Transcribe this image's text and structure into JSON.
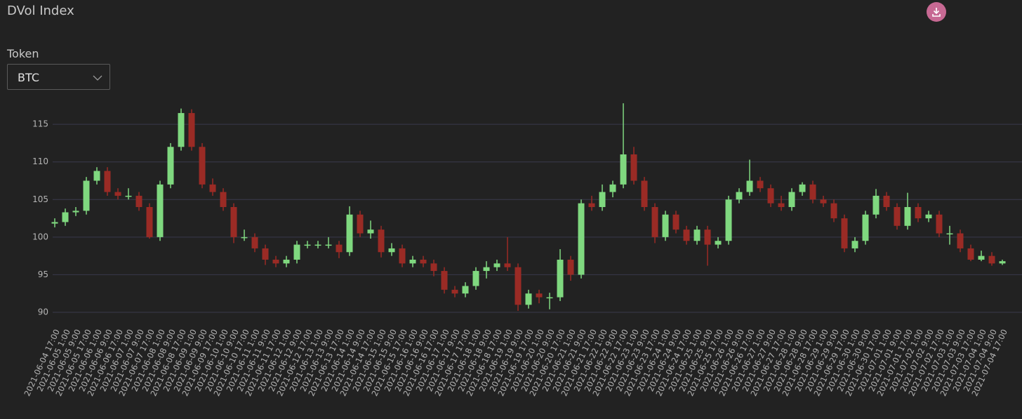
{
  "header": {
    "title": "DVol Index"
  },
  "controls": {
    "token_label": "Token",
    "token_value": "BTC"
  },
  "chart_data": {
    "type": "candlestick",
    "categories": [
      "2021-06-04 17:00",
      "2021-06-05 1:00",
      "2021-06-05 9:00",
      "2021-06-05 17:00",
      "2021-06-06 1:00",
      "2021-06-06 9:00",
      "2021-06-06 17:00",
      "2021-06-07 1:00",
      "2021-06-07 9:00",
      "2021-06-07 17:00",
      "2021-06-08 1:00",
      "2021-06-08 9:00",
      "2021-06-08 17:00",
      "2021-06-09 1:00",
      "2021-06-09 9:00",
      "2021-06-09 17:00",
      "2021-06-10 1:00",
      "2021-06-10 9:00",
      "2021-06-10 17:00",
      "2021-06-11 1:00",
      "2021-06-11 9:00",
      "2021-06-11 17:00",
      "2021-06-12 1:00",
      "2021-06-12 9:00",
      "2021-06-12 17:00",
      "2021-06-13 1:00",
      "2021-06-13 9:00",
      "2021-06-13 17:00",
      "2021-06-14 1:00",
      "2021-06-14 9:00",
      "2021-06-14 17:00",
      "2021-06-15 1:00",
      "2021-06-15 9:00",
      "2021-06-15 17:00",
      "2021-06-16 1:00",
      "2021-06-16 9:00",
      "2021-06-16 17:00",
      "2021-06-17 1:00",
      "2021-06-17 9:00",
      "2021-06-17 17:00",
      "2021-06-18 1:00",
      "2021-06-18 9:00",
      "2021-06-18 17:00",
      "2021-06-19 1:00",
      "2021-06-19 9:00",
      "2021-06-19 17:00",
      "2021-06-20 1:00",
      "2021-06-20 9:00",
      "2021-06-20 17:00",
      "2021-06-21 1:00",
      "2021-06-21 9:00",
      "2021-06-21 17:00",
      "2021-06-22 1:00",
      "2021-06-22 9:00",
      "2021-06-22 17:00",
      "2021-06-23 1:00",
      "2021-06-23 9:00",
      "2021-06-23 17:00",
      "2021-06-24 1:00",
      "2021-06-24 9:00",
      "2021-06-24 17:00",
      "2021-06-25 1:00",
      "2021-06-25 9:00",
      "2021-06-25 17:00",
      "2021-06-26 1:00",
      "2021-06-26 9:00",
      "2021-06-26 17:00",
      "2021-06-27 1:00",
      "2021-06-27 9:00",
      "2021-06-27 17:00",
      "2021-06-28 1:00",
      "2021-06-28 9:00",
      "2021-06-28 17:00",
      "2021-06-29 1:00",
      "2021-06-29 9:00",
      "2021-06-29 17:00",
      "2021-06-30 1:00",
      "2021-06-30 9:00",
      "2021-06-30 17:00",
      "2021-07-01 1:00",
      "2021-07-01 9:00",
      "2021-07-01 17:00",
      "2021-07-02 1:00",
      "2021-07-02 9:00",
      "2021-07-02 17:00",
      "2021-07-03 1:00",
      "2021-07-03 9:00",
      "2021-07-03 17:00",
      "2021-07-04 1:00",
      "2021-07-04 9:00",
      "2021-07-04 17:00"
    ],
    "open": [
      101.8,
      102,
      103.3,
      103.5,
      107.5,
      108.8,
      106,
      105.5,
      105.5,
      104,
      100,
      107,
      112,
      116.5,
      112,
      107,
      106,
      104,
      100,
      100,
      98.5,
      97,
      96.5,
      97,
      99,
      99,
      99,
      99,
      98,
      103,
      100.5,
      101,
      98,
      98.5,
      96.5,
      97,
      96.5,
      95.5,
      93,
      92.5,
      93.5,
      95.5,
      96,
      96.5,
      96,
      91,
      92.5,
      92,
      92,
      97,
      95,
      104.5,
      104,
      106,
      107,
      111,
      107.5,
      104,
      100,
      103,
      101,
      99.5,
      101,
      99,
      99.5,
      105,
      106,
      107.5,
      106.5,
      104.5,
      104,
      106,
      107,
      105,
      104.5,
      102.5,
      98.5,
      99.5,
      103,
      105.5,
      104,
      101.5,
      104,
      102.5,
      103,
      100.5,
      100.5,
      98.5,
      97,
      97.5,
      96.5
    ],
    "high": [
      102.5,
      103.8,
      104,
      108,
      109.3,
      109.3,
      106.5,
      106.5,
      106,
      104.5,
      107.5,
      112.5,
      117.1,
      117,
      112.5,
      107.8,
      106.5,
      104.5,
      101,
      100.5,
      99,
      97.5,
      97.5,
      99.5,
      99.5,
      99.5,
      100,
      99.5,
      104.1,
      103.5,
      102.2,
      101.5,
      99.2,
      99,
      97.5,
      97.5,
      97,
      96,
      93.5,
      94,
      96,
      96.8,
      97,
      100,
      96.5,
      93,
      93,
      92.6,
      98.4,
      97.5,
      105,
      105.5,
      107,
      107.5,
      117.8,
      112,
      108,
      104.5,
      103.5,
      103.5,
      101.5,
      101.5,
      101.5,
      100,
      105.5,
      106.5,
      110.3,
      108,
      107,
      105.5,
      106.5,
      107.3,
      107.5,
      105.5,
      105,
      103,
      100,
      103.5,
      106.4,
      106,
      104.5,
      105.9,
      104.5,
      103.5,
      103.5,
      101.5,
      101,
      99,
      98.2,
      98,
      97
    ],
    "low": [
      101.3,
      101.5,
      102.8,
      103,
      107,
      105.5,
      105,
      105,
      103.5,
      99.8,
      99.5,
      106.5,
      111.5,
      111.5,
      106.5,
      105.5,
      103.5,
      99.2,
      99.5,
      98,
      96.3,
      96,
      96,
      96.5,
      98.5,
      98.5,
      98.5,
      97.2,
      97.5,
      100,
      99.8,
      97.3,
      97.5,
      96,
      96,
      96,
      94.8,
      92.5,
      92,
      92,
      93,
      94.5,
      95.5,
      95.5,
      90.2,
      90.5,
      91.2,
      90.4,
      91.5,
      94.2,
      94.5,
      103.5,
      103.5,
      105.3,
      106.5,
      107,
      103.5,
      99.2,
      99.5,
      100.5,
      99,
      99,
      96.2,
      98.5,
      99,
      104.5,
      105.5,
      106,
      104,
      103.5,
      103.5,
      105.5,
      104.5,
      104,
      102,
      98,
      98,
      99,
      102.5,
      103.5,
      101,
      101,
      102,
      102,
      100,
      99,
      98,
      96.8,
      96.8,
      96.2,
      96.3
    ],
    "close": [
      102,
      103.3,
      103.5,
      107.5,
      108.8,
      106,
      105.5,
      105.5,
      104,
      100,
      107,
      112,
      116.5,
      112,
      107,
      106,
      104,
      100,
      100,
      98.5,
      97,
      96.5,
      97,
      99,
      99,
      99,
      99,
      98,
      103,
      100.5,
      101,
      98,
      98.5,
      96.5,
      97,
      96.5,
      95.5,
      93,
      92.5,
      93.5,
      95.5,
      96,
      96.5,
      96,
      91,
      92.5,
      92,
      92,
      97,
      95,
      104.5,
      104,
      106,
      107,
      111,
      107.5,
      104,
      100,
      103,
      101,
      99.5,
      101,
      99,
      99.5,
      105,
      106,
      107.5,
      106.5,
      104.5,
      104,
      106,
      107,
      105,
      104.5,
      102.5,
      98.5,
      99.5,
      103,
      105.5,
      104,
      101.5,
      104,
      102.5,
      103,
      100.5,
      100.5,
      98.5,
      97,
      97.5,
      96.5,
      96.8
    ],
    "up_color": "#7fd87f",
    "down_color": "#9a2b25",
    "ylim": [
      88.6,
      118
    ],
    "yticks": [
      90,
      95,
      100,
      105,
      110,
      115
    ],
    "grid": true
  }
}
